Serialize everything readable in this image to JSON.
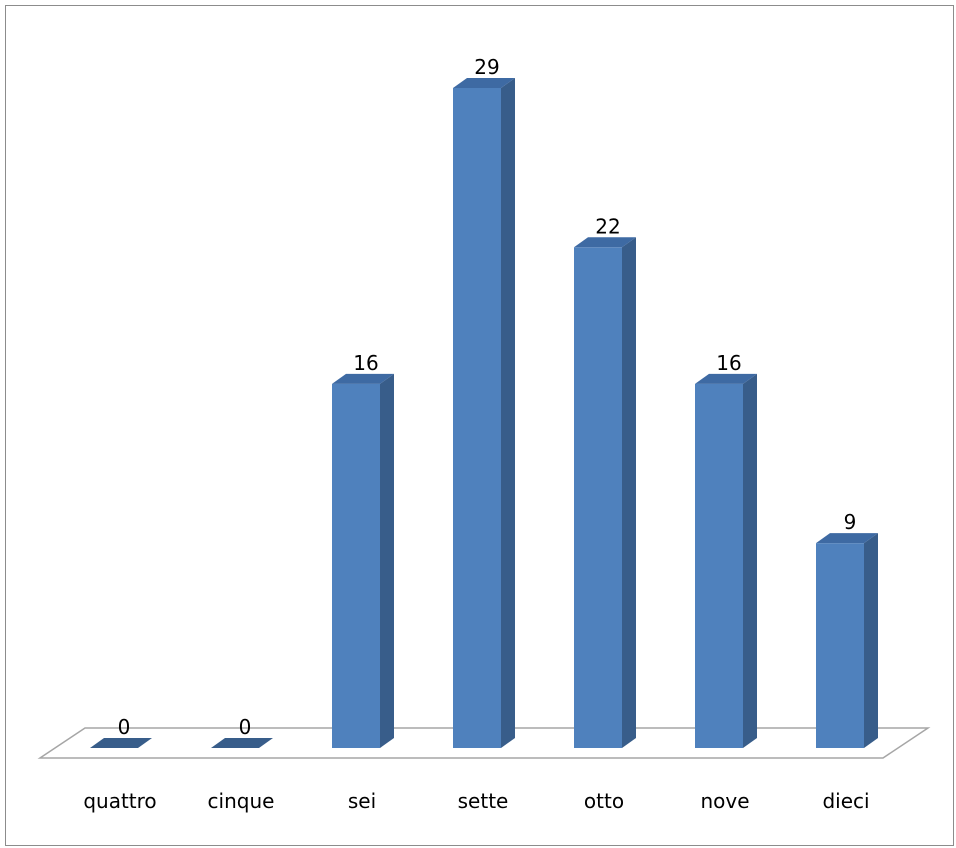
{
  "chart_data": {
    "type": "bar",
    "categories": [
      "quattro",
      "cinque",
      "sei",
      "sette",
      "otto",
      "nove",
      "dieci"
    ],
    "values": [
      0,
      0,
      16,
      29,
      22,
      16,
      9
    ],
    "title": "",
    "xlabel": "",
    "ylabel": "",
    "ylim": [
      0,
      29
    ],
    "grid": false,
    "legend": "none",
    "bar_style": "3d",
    "colors": {
      "front": "#4f81bd",
      "side": "#385d8a",
      "top": "#3e6aa3",
      "floor_stroke": "#a6a6a6",
      "text": "#000000"
    }
  }
}
